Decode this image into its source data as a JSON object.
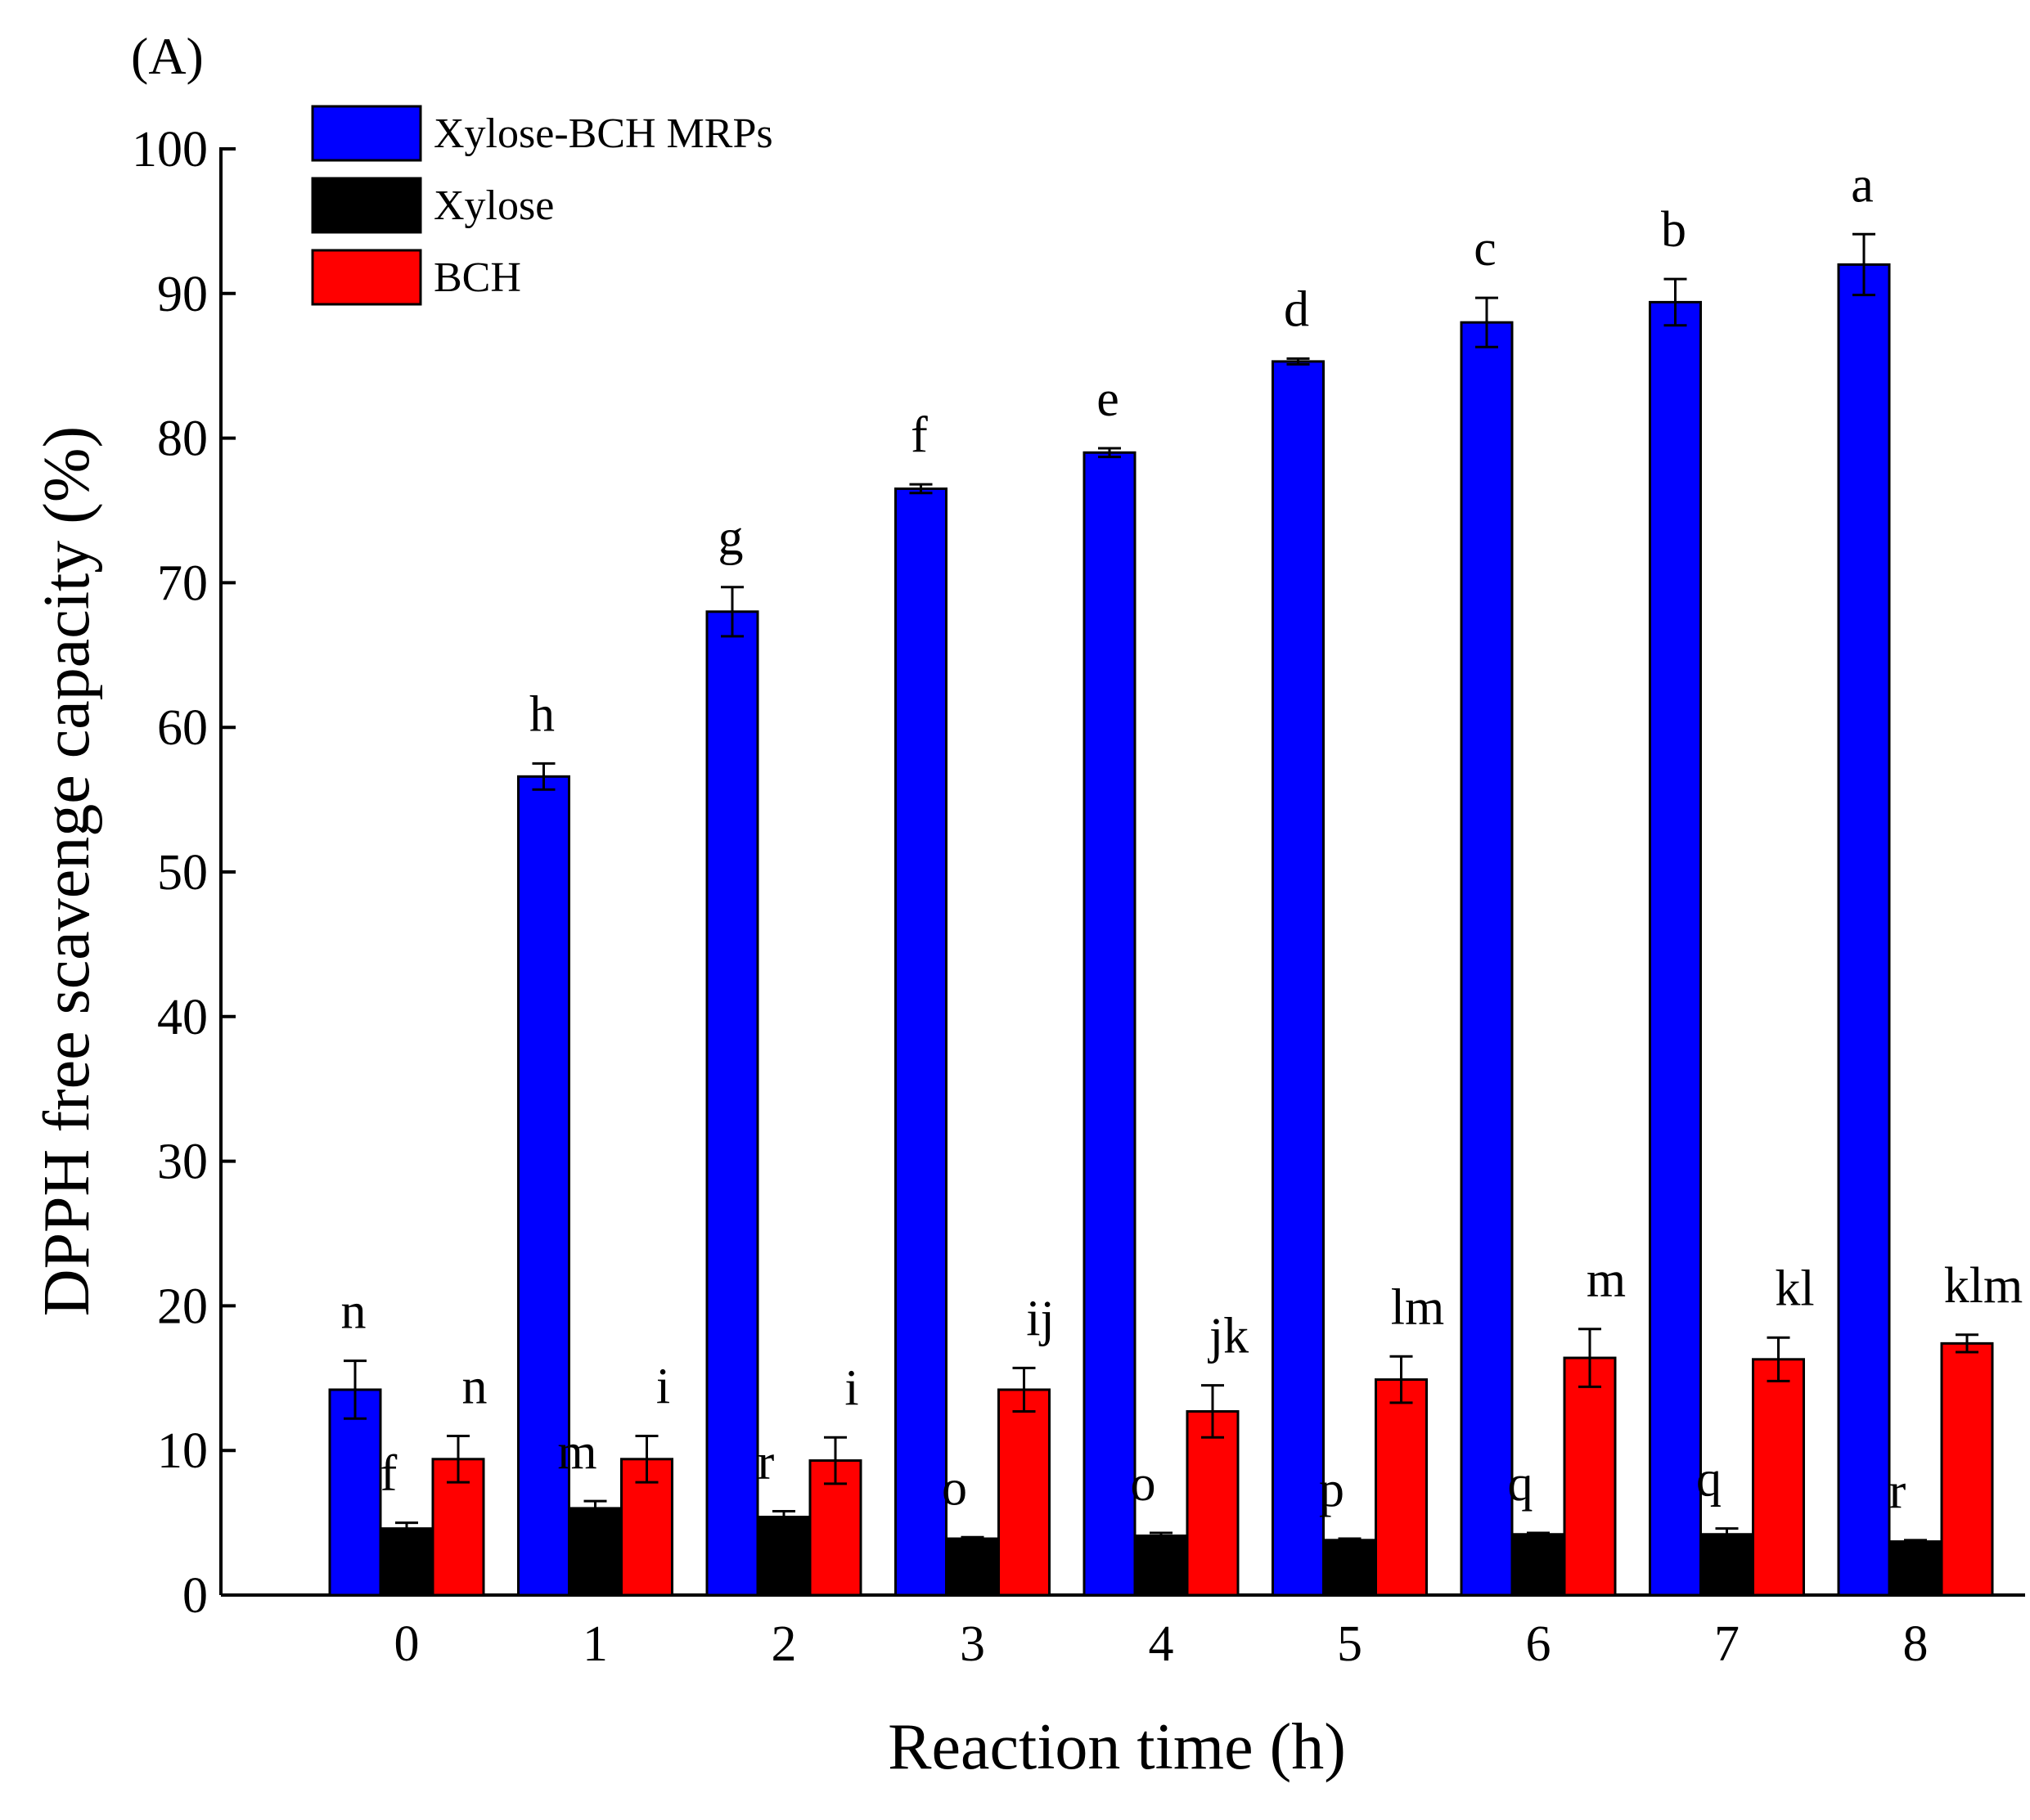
{
  "panel_label": "(A)",
  "chart_data": {
    "type": "bar",
    "title": "",
    "xlabel": "Reaction time (h)",
    "ylabel": "DPPH free scavenge capacity (%)",
    "ylim": [
      0,
      100
    ],
    "yticks": [
      0,
      10,
      20,
      30,
      40,
      50,
      60,
      70,
      80,
      90,
      100
    ],
    "categories": [
      "0",
      "1",
      "2",
      "3",
      "4",
      "5",
      "6",
      "7",
      "8"
    ],
    "legend_position": "top-left",
    "series": [
      {
        "name": "Xylose-BCH MRPs",
        "color": "#0000ff",
        "values": [
          14.2,
          56.6,
          68.0,
          76.5,
          79.0,
          85.3,
          88.0,
          89.4,
          92.0
        ],
        "errors": [
          2.0,
          0.9,
          1.7,
          0.3,
          0.3,
          0.2,
          1.7,
          1.6,
          2.1
        ],
        "labels": [
          "n",
          "h",
          "g",
          "f",
          "e",
          "d",
          "c",
          "b",
          "a"
        ]
      },
      {
        "name": "Xylose",
        "color": "#000000",
        "values": [
          4.6,
          6.0,
          5.4,
          3.9,
          4.1,
          3.8,
          4.2,
          4.2,
          3.7
        ],
        "errors": [
          0.4,
          0.5,
          0.4,
          0.1,
          0.2,
          0.1,
          0.1,
          0.4,
          0.1
        ],
        "labels": [
          "f",
          "m",
          "r",
          "o",
          "o",
          "p",
          "q",
          "q",
          "r"
        ]
      },
      {
        "name": "BCH",
        "color": "#ff0000",
        "values": [
          9.4,
          9.4,
          9.3,
          14.2,
          12.7,
          14.9,
          16.4,
          16.3,
          17.4
        ],
        "errors": [
          1.6,
          1.6,
          1.6,
          1.5,
          1.8,
          1.6,
          2.0,
          1.5,
          0.6
        ],
        "labels": [
          "n",
          "i",
          "i",
          "ij",
          "jk",
          "lm",
          "m",
          "kl",
          "klm"
        ]
      }
    ]
  }
}
